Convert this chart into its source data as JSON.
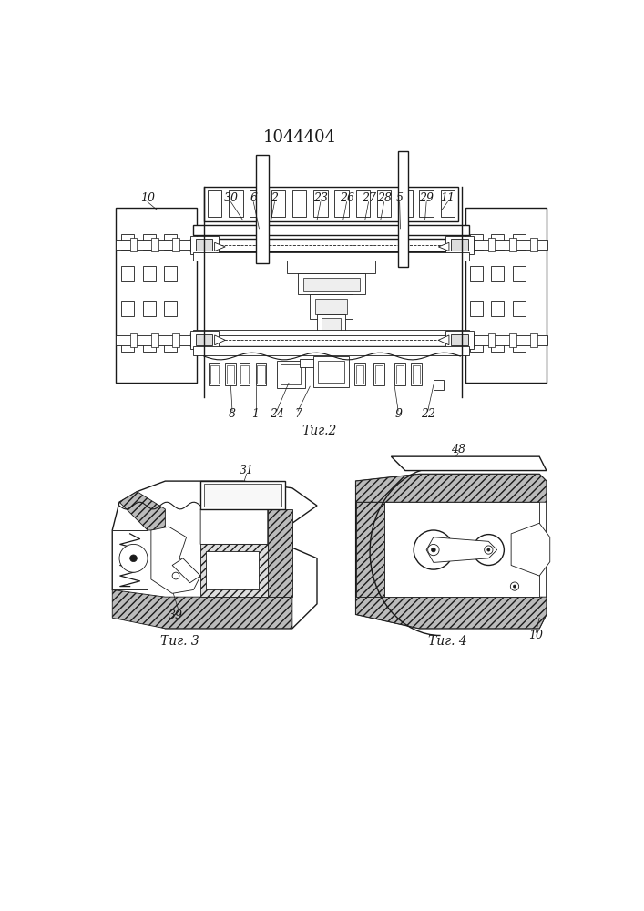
{
  "title": "1044404",
  "bg": "#ffffff",
  "black": "#1a1a1a",
  "gray": "#888888",
  "hatch_gray": "#cccccc",
  "fig2_label": "Τиг.2",
  "fig3_label": "Τиг. 3",
  "fig4_label": "Τиг. 4"
}
